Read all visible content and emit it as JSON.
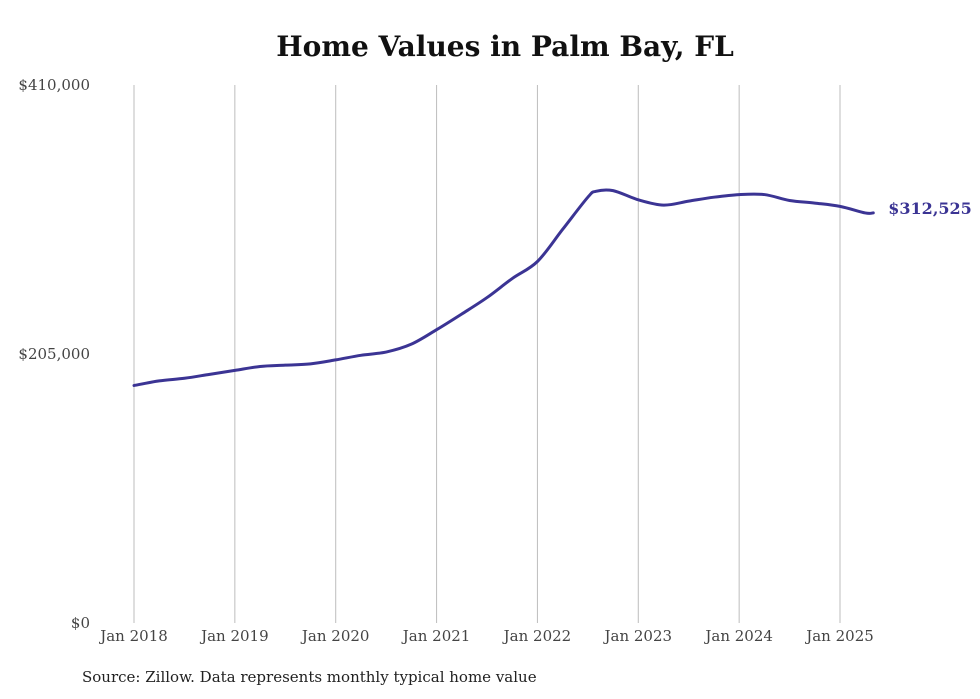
{
  "chart_data": {
    "type": "line",
    "title": "Home Values in Palm Bay, FL",
    "xlabel": "",
    "ylabel": "",
    "y_ticks": [
      "$0",
      "$205,000",
      "$410,000"
    ],
    "ylim": [
      0,
      410000
    ],
    "x_ticks": [
      "Jan 2018",
      "Jan 2019",
      "Jan 2020",
      "Jan 2021",
      "Jan 2022",
      "Jan 2023",
      "Jan 2024",
      "Jan 2025"
    ],
    "xlim": [
      2018.0,
      2025.0
    ],
    "grid": {
      "vertical": true,
      "horizontal": false
    },
    "series": [
      {
        "name": "",
        "color": "#3b3494",
        "end_label": "$312,525",
        "points": [
          {
            "x": 2018.0,
            "y": 181000
          },
          {
            "x": 2018.25,
            "y": 184500
          },
          {
            "x": 2018.5,
            "y": 186500
          },
          {
            "x": 2018.75,
            "y": 189500
          },
          {
            "x": 2019.0,
            "y": 192500
          },
          {
            "x": 2019.25,
            "y": 195500
          },
          {
            "x": 2019.5,
            "y": 196500
          },
          {
            "x": 2019.75,
            "y": 197500
          },
          {
            "x": 2020.0,
            "y": 200500
          },
          {
            "x": 2020.25,
            "y": 204000
          },
          {
            "x": 2020.5,
            "y": 206500
          },
          {
            "x": 2020.75,
            "y": 212500
          },
          {
            "x": 2021.0,
            "y": 223500
          },
          {
            "x": 2021.25,
            "y": 235500
          },
          {
            "x": 2021.5,
            "y": 248000
          },
          {
            "x": 2021.75,
            "y": 262500
          },
          {
            "x": 2022.0,
            "y": 275500
          },
          {
            "x": 2022.25,
            "y": 300000
          },
          {
            "x": 2022.5,
            "y": 324500
          },
          {
            "x": 2022.58,
            "y": 329000
          },
          {
            "x": 2022.75,
            "y": 329500
          },
          {
            "x": 2023.0,
            "y": 322500
          },
          {
            "x": 2023.25,
            "y": 318500
          },
          {
            "x": 2023.5,
            "y": 321500
          },
          {
            "x": 2023.75,
            "y": 324500
          },
          {
            "x": 2024.0,
            "y": 326500
          },
          {
            "x": 2024.25,
            "y": 326500
          },
          {
            "x": 2024.5,
            "y": 322000
          },
          {
            "x": 2024.75,
            "y": 320000
          },
          {
            "x": 2025.0,
            "y": 317500
          },
          {
            "x": 2025.25,
            "y": 312500
          },
          {
            "x": 2025.33,
            "y": 312525
          }
        ]
      }
    ]
  },
  "footer": {
    "source": "Source: Zillow. Data represents monthly typical home value"
  }
}
